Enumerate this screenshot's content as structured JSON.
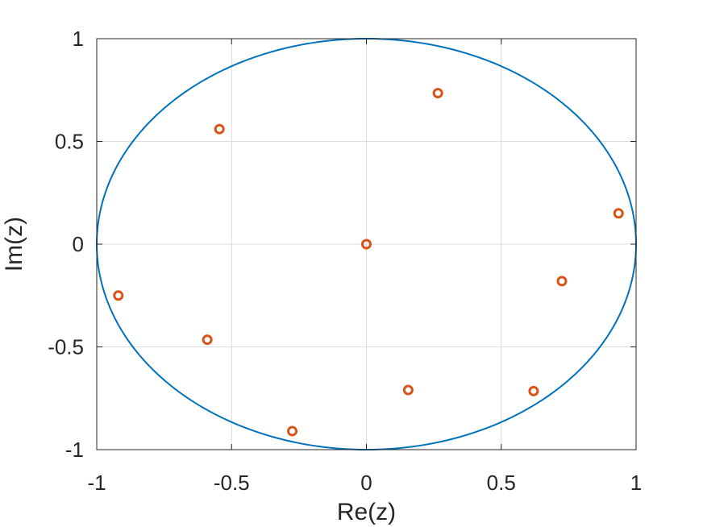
{
  "chart_data": {
    "type": "scatter",
    "title": "",
    "xlabel": "Re(z)",
    "ylabel": "Im(z)",
    "xlim": [
      -1,
      1
    ],
    "ylim": [
      -1,
      1
    ],
    "xticks": [
      -1,
      -0.5,
      0,
      0.5,
      1
    ],
    "yticks": [
      -1,
      -0.5,
      0,
      0.5,
      1
    ],
    "xtick_labels": [
      "-1",
      "-0.5",
      "0",
      "0.5",
      "1"
    ],
    "ytick_labels": [
      "-1",
      "-0.5",
      "0",
      "0.5",
      "1"
    ],
    "grid": true,
    "series": [
      {
        "type": "line",
        "shape": "unit-circle",
        "color": "#0072BD"
      },
      {
        "type": "scatter",
        "marker": "o",
        "color": "#D95319",
        "points": [
          {
            "x": 0.0,
            "y": 0.0
          },
          {
            "x": 0.265,
            "y": 0.735
          },
          {
            "x": -0.545,
            "y": 0.56
          },
          {
            "x": 0.935,
            "y": 0.15
          },
          {
            "x": 0.725,
            "y": -0.18
          },
          {
            "x": -0.92,
            "y": -0.25
          },
          {
            "x": -0.59,
            "y": -0.465
          },
          {
            "x": 0.155,
            "y": -0.71
          },
          {
            "x": 0.62,
            "y": -0.715
          },
          {
            "x": -0.275,
            "y": -0.91
          }
        ]
      }
    ]
  }
}
